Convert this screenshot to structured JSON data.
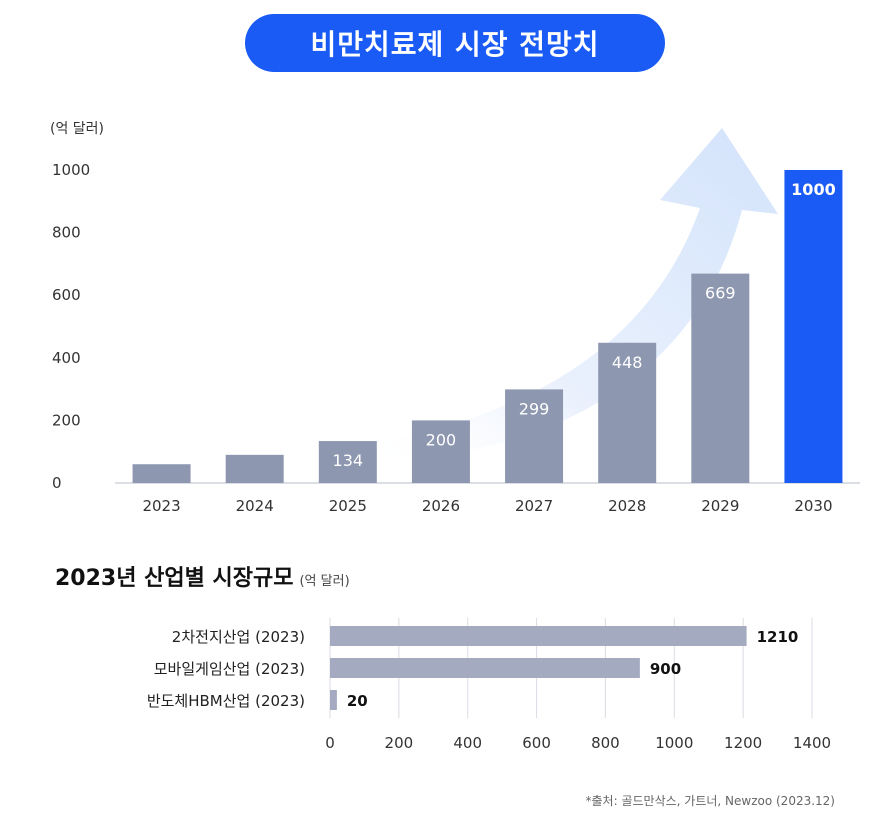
{
  "header": {
    "title": "비만치료제 시장 전망치"
  },
  "section2": {
    "title": "2023년 산업별 시장규모",
    "unit": "(억 달러)"
  },
  "source": "*출처: 골드만삭스, 가트너, Newzoo (2023.12)",
  "colors": {
    "accent": "#1a5bf5",
    "bar": "#8e97b0",
    "bar_light": "#a4aac0",
    "arrow": "#dde9fb"
  },
  "chart_data": [
    {
      "type": "bar",
      "title": "비만치료제 시장 전망치",
      "ylabel": "(억 달러)",
      "xlabel": "",
      "categories": [
        "2023",
        "2024",
        "2025",
        "2026",
        "2027",
        "2028",
        "2029",
        "2030"
      ],
      "values": [
        60,
        90,
        134,
        200,
        299,
        448,
        669,
        1000
      ],
      "data_labels": [
        "",
        "",
        "134",
        "200",
        "299",
        "448",
        "669",
        "1000"
      ],
      "highlight_index": 7,
      "ylim": [
        0,
        1000
      ],
      "yticks": [
        0,
        200,
        400,
        600,
        800,
        1000
      ]
    },
    {
      "type": "bar-horizontal",
      "title": "2023년 산업별 시장규모",
      "unit": "(억 달러)",
      "categories": [
        "2차전지산업 (2023)",
        "모바일게임산업 (2023)",
        "반도체HBM산업 (2023)"
      ],
      "values": [
        1210,
        900,
        20
      ],
      "data_labels": [
        "1210",
        "900",
        "20"
      ],
      "xlim": [
        0,
        1400
      ],
      "xticks": [
        0,
        200,
        400,
        600,
        800,
        1000,
        1200,
        1400
      ],
      "grid": true
    }
  ]
}
